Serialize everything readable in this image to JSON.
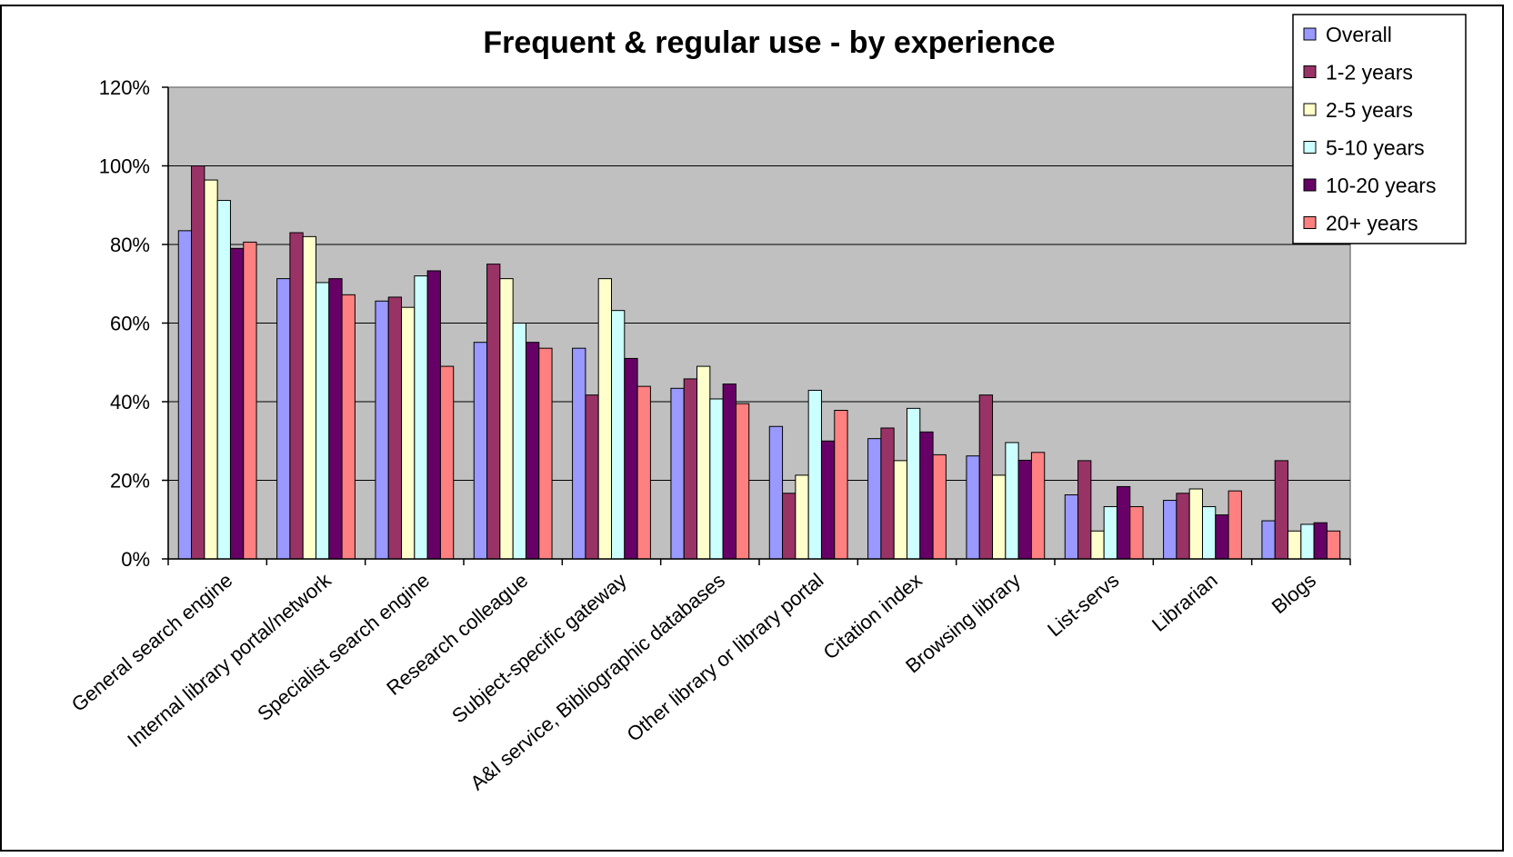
{
  "chart_data": {
    "type": "bar",
    "title": "Frequent & regular use - by experience",
    "xlabel": "",
    "ylabel": "",
    "ylim": [
      0,
      1.2
    ],
    "yticks": [
      "0%",
      "20%",
      "40%",
      "60%",
      "80%",
      "100%",
      "120%"
    ],
    "grid": true,
    "legend_position": "top-right",
    "categories": [
      "General search engine",
      "Internal library portal/network",
      "Specialist search engine",
      "Research colleague",
      "Subject-specific gateway",
      "A&I service, Bibliographic databases",
      "Other library or library portal",
      "Citation index",
      "Browsing library",
      "List-servs",
      "Librarian",
      "Blogs"
    ],
    "series": [
      {
        "name": "Overall",
        "color": "#9999ff",
        "values": [
          0.835,
          0.713,
          0.656,
          0.551,
          0.536,
          0.434,
          0.337,
          0.306,
          0.262,
          0.163,
          0.149,
          0.097
        ]
      },
      {
        "name": "1-2 years",
        "color": "#993366",
        "values": [
          1.0,
          0.83,
          0.666,
          0.75,
          0.417,
          0.458,
          0.167,
          0.333,
          0.417,
          0.25,
          0.167,
          0.25
        ]
      },
      {
        "name": "2-5 years",
        "color": "#ffffcc",
        "values": [
          0.964,
          0.82,
          0.64,
          0.713,
          0.713,
          0.49,
          0.213,
          0.25,
          0.213,
          0.071,
          0.178,
          0.071
        ]
      },
      {
        "name": "5-10 years",
        "color": "#ccffff",
        "values": [
          0.912,
          0.703,
          0.72,
          0.6,
          0.632,
          0.407,
          0.429,
          0.383,
          0.296,
          0.133,
          0.133,
          0.088
        ]
      },
      {
        "name": "10-20 years",
        "color": "#660066",
        "values": [
          0.79,
          0.713,
          0.733,
          0.551,
          0.51,
          0.445,
          0.3,
          0.323,
          0.251,
          0.184,
          0.112,
          0.092
        ]
      },
      {
        "name": "20+ years",
        "color": "#ff8080",
        "values": [
          0.806,
          0.672,
          0.49,
          0.536,
          0.439,
          0.395,
          0.378,
          0.265,
          0.271,
          0.133,
          0.173,
          0.071
        ]
      }
    ]
  }
}
